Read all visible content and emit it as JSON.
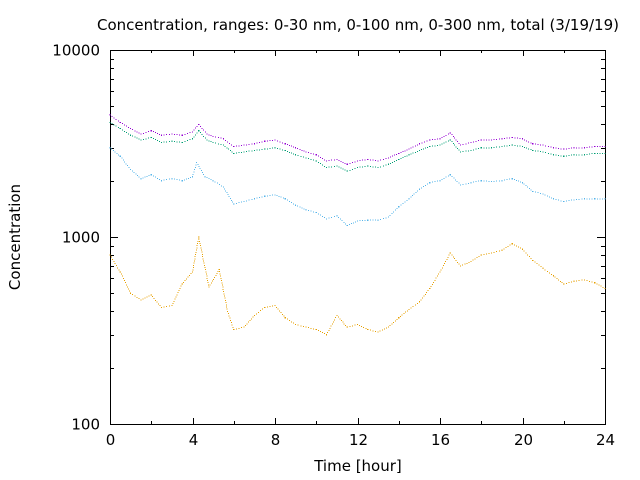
{
  "chart_data": {
    "type": "scatter",
    "title": "Concentration, ranges: 0-30 nm, 0-100 nm, 0-300 nm, total (3/19/19)",
    "xlabel": "Time [hour]",
    "ylabel": "Concentration",
    "xlim": [
      0,
      24
    ],
    "ylim": [
      100,
      10000
    ],
    "yscale": "log",
    "grid": false,
    "legend": "none",
    "x_ticks": [
      {
        "value": 0,
        "label": "0"
      },
      {
        "value": 4,
        "label": "4"
      },
      {
        "value": 8,
        "label": "8"
      },
      {
        "value": 12,
        "label": "12"
      },
      {
        "value": 16,
        "label": "16"
      },
      {
        "value": 20,
        "label": "20"
      },
      {
        "value": 24,
        "label": "24"
      }
    ],
    "y_ticks": [
      {
        "value": 100,
        "label": "100"
      },
      {
        "value": 1000,
        "label": "1000"
      },
      {
        "value": 10000,
        "label": "10000"
      }
    ],
    "series": [
      {
        "color": "#e69f00",
        "points": [
          [
            0,
            800
          ],
          [
            0.5,
            650
          ],
          [
            1,
            500
          ],
          [
            1.5,
            460
          ],
          [
            2,
            490
          ],
          [
            2.5,
            420
          ],
          [
            3,
            430
          ],
          [
            3.5,
            560
          ],
          [
            4,
            650
          ],
          [
            4.3,
            1000
          ],
          [
            4.8,
            540
          ],
          [
            5.3,
            670
          ],
          [
            5.7,
            400
          ],
          [
            6,
            320
          ],
          [
            6.5,
            330
          ],
          [
            7,
            380
          ],
          [
            7.5,
            420
          ],
          [
            8,
            430
          ],
          [
            8.5,
            370
          ],
          [
            9,
            340
          ],
          [
            9.5,
            330
          ],
          [
            10,
            320
          ],
          [
            10.5,
            300
          ],
          [
            11,
            380
          ],
          [
            11.5,
            330
          ],
          [
            12,
            340
          ],
          [
            12.5,
            320
          ],
          [
            13,
            310
          ],
          [
            13.5,
            330
          ],
          [
            14,
            370
          ],
          [
            14.5,
            410
          ],
          [
            15,
            450
          ],
          [
            15.5,
            530
          ],
          [
            16,
            650
          ],
          [
            16.5,
            820
          ],
          [
            17,
            700
          ],
          [
            17.5,
            740
          ],
          [
            18,
            800
          ],
          [
            18.5,
            820
          ],
          [
            19,
            850
          ],
          [
            19.5,
            920
          ],
          [
            20,
            860
          ],
          [
            20.5,
            750
          ],
          [
            21,
            680
          ],
          [
            21.5,
            620
          ],
          [
            22,
            560
          ],
          [
            22.5,
            580
          ],
          [
            23,
            590
          ],
          [
            23.5,
            570
          ],
          [
            24,
            530
          ]
        ]
      },
      {
        "color": "#56b4e9",
        "points": [
          [
            0,
            3000
          ],
          [
            0.5,
            2700
          ],
          [
            1,
            2300
          ],
          [
            1.5,
            2050
          ],
          [
            2,
            2150
          ],
          [
            2.5,
            2000
          ],
          [
            3,
            2050
          ],
          [
            3.5,
            2000
          ],
          [
            4,
            2100
          ],
          [
            4.2,
            2500
          ],
          [
            4.6,
            2100
          ],
          [
            5,
            2000
          ],
          [
            5.5,
            1850
          ],
          [
            6,
            1500
          ],
          [
            6.5,
            1550
          ],
          [
            7,
            1600
          ],
          [
            7.5,
            1650
          ],
          [
            8,
            1680
          ],
          [
            8.5,
            1600
          ],
          [
            9,
            1480
          ],
          [
            9.5,
            1400
          ],
          [
            10,
            1350
          ],
          [
            10.5,
            1250
          ],
          [
            11,
            1300
          ],
          [
            11.5,
            1150
          ],
          [
            12,
            1220
          ],
          [
            12.5,
            1230
          ],
          [
            13,
            1230
          ],
          [
            13.5,
            1280
          ],
          [
            14,
            1450
          ],
          [
            14.5,
            1600
          ],
          [
            15,
            1800
          ],
          [
            15.5,
            1950
          ],
          [
            16,
            2000
          ],
          [
            16.5,
            2150
          ],
          [
            17,
            1900
          ],
          [
            17.5,
            1950
          ],
          [
            18,
            2000
          ],
          [
            18.5,
            1980
          ],
          [
            19,
            2000
          ],
          [
            19.5,
            2050
          ],
          [
            20,
            1950
          ],
          [
            20.5,
            1750
          ],
          [
            21,
            1700
          ],
          [
            21.5,
            1600
          ],
          [
            22,
            1550
          ],
          [
            22.5,
            1580
          ],
          [
            23,
            1600
          ],
          [
            23.5,
            1600
          ],
          [
            24,
            1600
          ]
        ]
      },
      {
        "color": "#009e73",
        "points": [
          [
            0,
            4100
          ],
          [
            0.5,
            3800
          ],
          [
            1,
            3500
          ],
          [
            1.5,
            3300
          ],
          [
            2,
            3400
          ],
          [
            2.5,
            3200
          ],
          [
            3,
            3250
          ],
          [
            3.5,
            3200
          ],
          [
            4,
            3350
          ],
          [
            4.3,
            3700
          ],
          [
            4.7,
            3300
          ],
          [
            5,
            3200
          ],
          [
            5.5,
            3100
          ],
          [
            6,
            2800
          ],
          [
            6.5,
            2850
          ],
          [
            7,
            2900
          ],
          [
            7.5,
            2950
          ],
          [
            8,
            3000
          ],
          [
            8.5,
            2900
          ],
          [
            9,
            2750
          ],
          [
            9.5,
            2650
          ],
          [
            10,
            2550
          ],
          [
            10.5,
            2350
          ],
          [
            11,
            2400
          ],
          [
            11.5,
            2250
          ],
          [
            12,
            2350
          ],
          [
            12.5,
            2400
          ],
          [
            13,
            2350
          ],
          [
            13.5,
            2450
          ],
          [
            14,
            2600
          ],
          [
            14.5,
            2750
          ],
          [
            15,
            2900
          ],
          [
            15.5,
            3050
          ],
          [
            16,
            3100
          ],
          [
            16.5,
            3300
          ],
          [
            17,
            2850
          ],
          [
            17.5,
            2900
          ],
          [
            18,
            3000
          ],
          [
            18.5,
            3000
          ],
          [
            19,
            3050
          ],
          [
            19.5,
            3100
          ],
          [
            20,
            3050
          ],
          [
            20.5,
            2900
          ],
          [
            21,
            2850
          ],
          [
            21.5,
            2750
          ],
          [
            22,
            2700
          ],
          [
            22.5,
            2750
          ],
          [
            23,
            2750
          ],
          [
            23.5,
            2800
          ],
          [
            24,
            2800
          ]
        ]
      },
      {
        "color": "#9400d3",
        "points": [
          [
            0,
            4500
          ],
          [
            0.5,
            4100
          ],
          [
            1,
            3800
          ],
          [
            1.5,
            3550
          ],
          [
            2,
            3700
          ],
          [
            2.5,
            3500
          ],
          [
            3,
            3550
          ],
          [
            3.5,
            3500
          ],
          [
            4,
            3650
          ],
          [
            4.3,
            4000
          ],
          [
            4.7,
            3550
          ],
          [
            5,
            3450
          ],
          [
            5.5,
            3350
          ],
          [
            6,
            3050
          ],
          [
            6.5,
            3100
          ],
          [
            7,
            3150
          ],
          [
            7.5,
            3250
          ],
          [
            8,
            3300
          ],
          [
            8.5,
            3150
          ],
          [
            9,
            3000
          ],
          [
            9.5,
            2850
          ],
          [
            10,
            2750
          ],
          [
            10.5,
            2550
          ],
          [
            11,
            2600
          ],
          [
            11.5,
            2450
          ],
          [
            12,
            2550
          ],
          [
            12.5,
            2600
          ],
          [
            13,
            2550
          ],
          [
            13.5,
            2650
          ],
          [
            14,
            2800
          ],
          [
            14.5,
            2950
          ],
          [
            15,
            3150
          ],
          [
            15.5,
            3300
          ],
          [
            16,
            3350
          ],
          [
            16.5,
            3600
          ],
          [
            17,
            3100
          ],
          [
            17.5,
            3200
          ],
          [
            18,
            3300
          ],
          [
            18.5,
            3300
          ],
          [
            19,
            3350
          ],
          [
            19.5,
            3400
          ],
          [
            20,
            3350
          ],
          [
            20.5,
            3150
          ],
          [
            21,
            3100
          ],
          [
            21.5,
            3000
          ],
          [
            22,
            2950
          ],
          [
            22.5,
            3000
          ],
          [
            23,
            3000
          ],
          [
            23.5,
            3050
          ],
          [
            24,
            3050
          ]
        ]
      }
    ]
  }
}
